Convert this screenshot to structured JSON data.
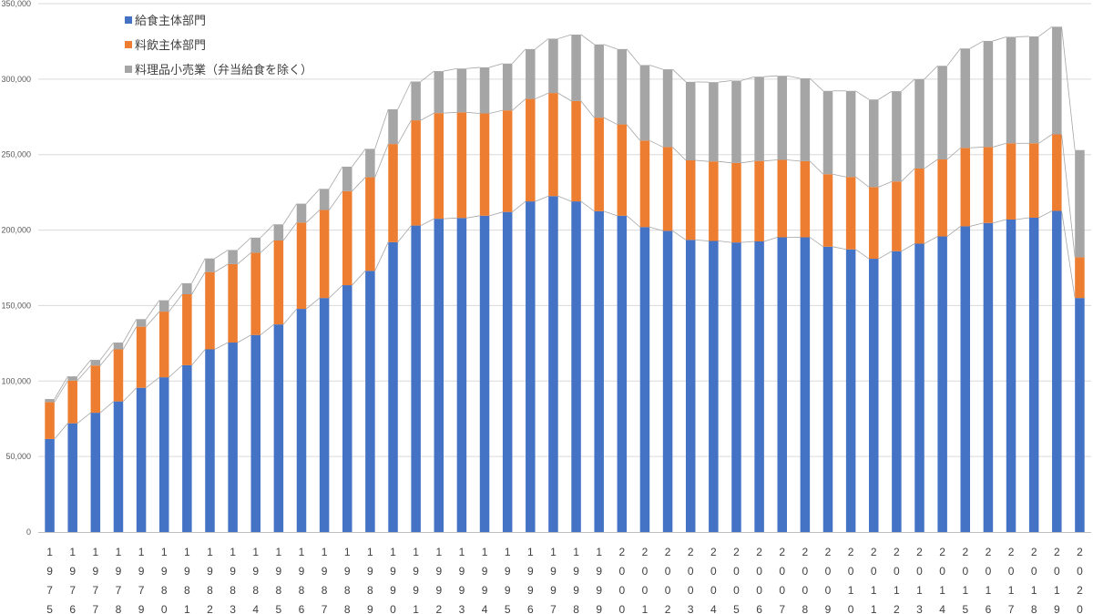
{
  "chart_data": {
    "type": "bar",
    "stacked": true,
    "categories": [
      "1975",
      "1976",
      "1977",
      "1978",
      "1979",
      "1980",
      "1981",
      "1982",
      "1983",
      "1984",
      "1985",
      "1986",
      "1987",
      "1988",
      "1989",
      "1990",
      "1991",
      "1992",
      "1993",
      "1994",
      "1995",
      "1996",
      "1997",
      "1998",
      "1999",
      "2000",
      "2001",
      "2002",
      "2003",
      "2004",
      "2005",
      "2006",
      "2007",
      "2008",
      "2009",
      "2010",
      "2011",
      "2012",
      "2013",
      "2014",
      "2015",
      "2016",
      "2017",
      "2018",
      "2019",
      "2020"
    ],
    "series": [
      {
        "name": "給食主体部門",
        "color": "#4472c4",
        "values": [
          61600,
          72000,
          79000,
          86500,
          95500,
          102500,
          110500,
          121000,
          125500,
          130500,
          137500,
          147800,
          155000,
          163500,
          173000,
          192000,
          203000,
          207500,
          208000,
          209500,
          212000,
          219000,
          222500,
          219000,
          212500,
          209500,
          202000,
          199500,
          193500,
          192800,
          191800,
          192500,
          195200,
          195200,
          189000,
          187200,
          181000,
          186000,
          191000,
          195800,
          202500,
          204700,
          207000,
          208200,
          212700,
          155000
        ]
      },
      {
        "name": "料飲主体部門",
        "color": "#ed7d31",
        "values": [
          24500,
          28300,
          31300,
          34500,
          40500,
          43500,
          47000,
          51200,
          52000,
          54500,
          55600,
          57200,
          58300,
          62300,
          62000,
          65000,
          69700,
          70000,
          70000,
          67800,
          67300,
          67900,
          68300,
          66500,
          62000,
          60500,
          57300,
          55500,
          52700,
          52700,
          52700,
          53300,
          51300,
          50500,
          48000,
          48000,
          47500,
          46200,
          49800,
          51000,
          52000,
          50300,
          50500,
          49300,
          50700,
          27000
        ]
      },
      {
        "name": "料理品小売業（弁当給食を除く）",
        "color": "#a5a5a5",
        "values": [
          2000,
          2800,
          3700,
          4500,
          5000,
          7500,
          7300,
          9000,
          9300,
          10000,
          10700,
          12500,
          14000,
          16200,
          18800,
          23000,
          25700,
          27800,
          29000,
          30500,
          31000,
          33000,
          36000,
          44000,
          48500,
          49900,
          50000,
          51500,
          52000,
          52500,
          54500,
          55800,
          55700,
          54800,
          55200,
          57000,
          58000,
          59800,
          59200,
          62000,
          65800,
          70300,
          70500,
          70800,
          71300,
          71000
        ]
      }
    ],
    "ylim": [
      0,
      350000
    ],
    "yticks": [
      "0",
      "50,000",
      "100,000",
      "150,000",
      "200,000",
      "250,000",
      "300,000",
      "350,000"
    ],
    "legend_position": "top-left",
    "grid": "horizontal",
    "series_lines": true,
    "xlabel": "",
    "ylabel": "",
    "title": ""
  }
}
